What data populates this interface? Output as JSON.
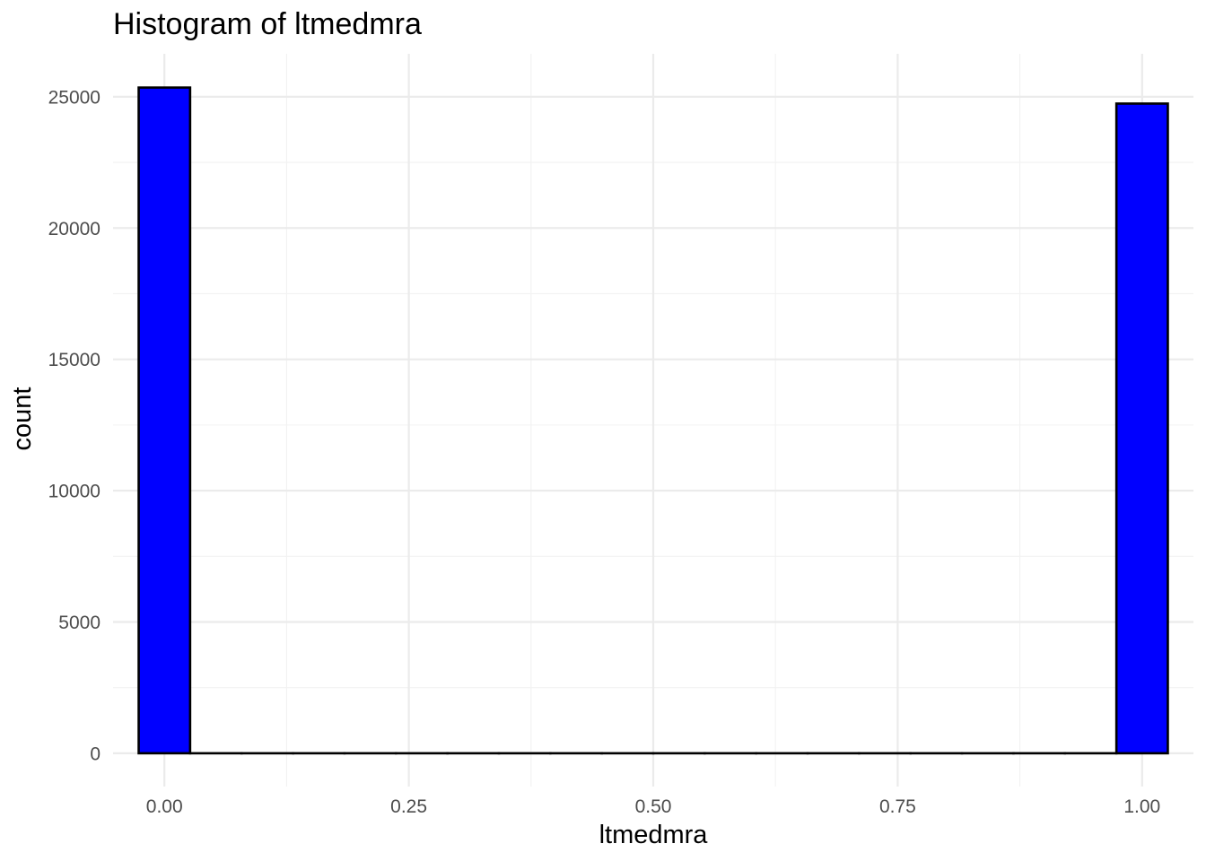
{
  "chart_data": {
    "type": "bar",
    "title": "Histogram of ltmedmra",
    "xlabel": "ltmedmra",
    "ylabel": "count",
    "xlim": [
      -0.0525,
      1.0525
    ],
    "ylim": [
      -1268,
      26635
    ],
    "x_ticks": [
      0,
      0.25,
      0.5,
      0.75,
      1
    ],
    "x_tick_labels": [
      "0.00",
      "0.25",
      "0.50",
      "0.75",
      "1.00"
    ],
    "y_ticks": [
      0,
      5000,
      10000,
      15000,
      20000,
      25000
    ],
    "y_tick_labels": [
      "0",
      "5000",
      "10000",
      "15000",
      "20000",
      "25000"
    ],
    "bin_width": 0.0526,
    "bins": [
      {
        "x": 0.0,
        "count": 25350
      },
      {
        "x": 0.0526,
        "count": 0
      },
      {
        "x": 0.1053,
        "count": 0
      },
      {
        "x": 0.1579,
        "count": 0
      },
      {
        "x": 0.2105,
        "count": 0
      },
      {
        "x": 0.2632,
        "count": 0
      },
      {
        "x": 0.3158,
        "count": 0
      },
      {
        "x": 0.3684,
        "count": 0
      },
      {
        "x": 0.4211,
        "count": 0
      },
      {
        "x": 0.4737,
        "count": 0
      },
      {
        "x": 0.5263,
        "count": 0
      },
      {
        "x": 0.5789,
        "count": 0
      },
      {
        "x": 0.6316,
        "count": 0
      },
      {
        "x": 0.6842,
        "count": 0
      },
      {
        "x": 0.7368,
        "count": 0
      },
      {
        "x": 0.7895,
        "count": 0
      },
      {
        "x": 0.8421,
        "count": 0
      },
      {
        "x": 0.8947,
        "count": 0
      },
      {
        "x": 0.9474,
        "count": 0
      },
      {
        "x": 1.0,
        "count": 24740
      }
    ],
    "fill_color": "#0000ff",
    "outline_color": "#000000",
    "grid": true,
    "legend": "none"
  }
}
